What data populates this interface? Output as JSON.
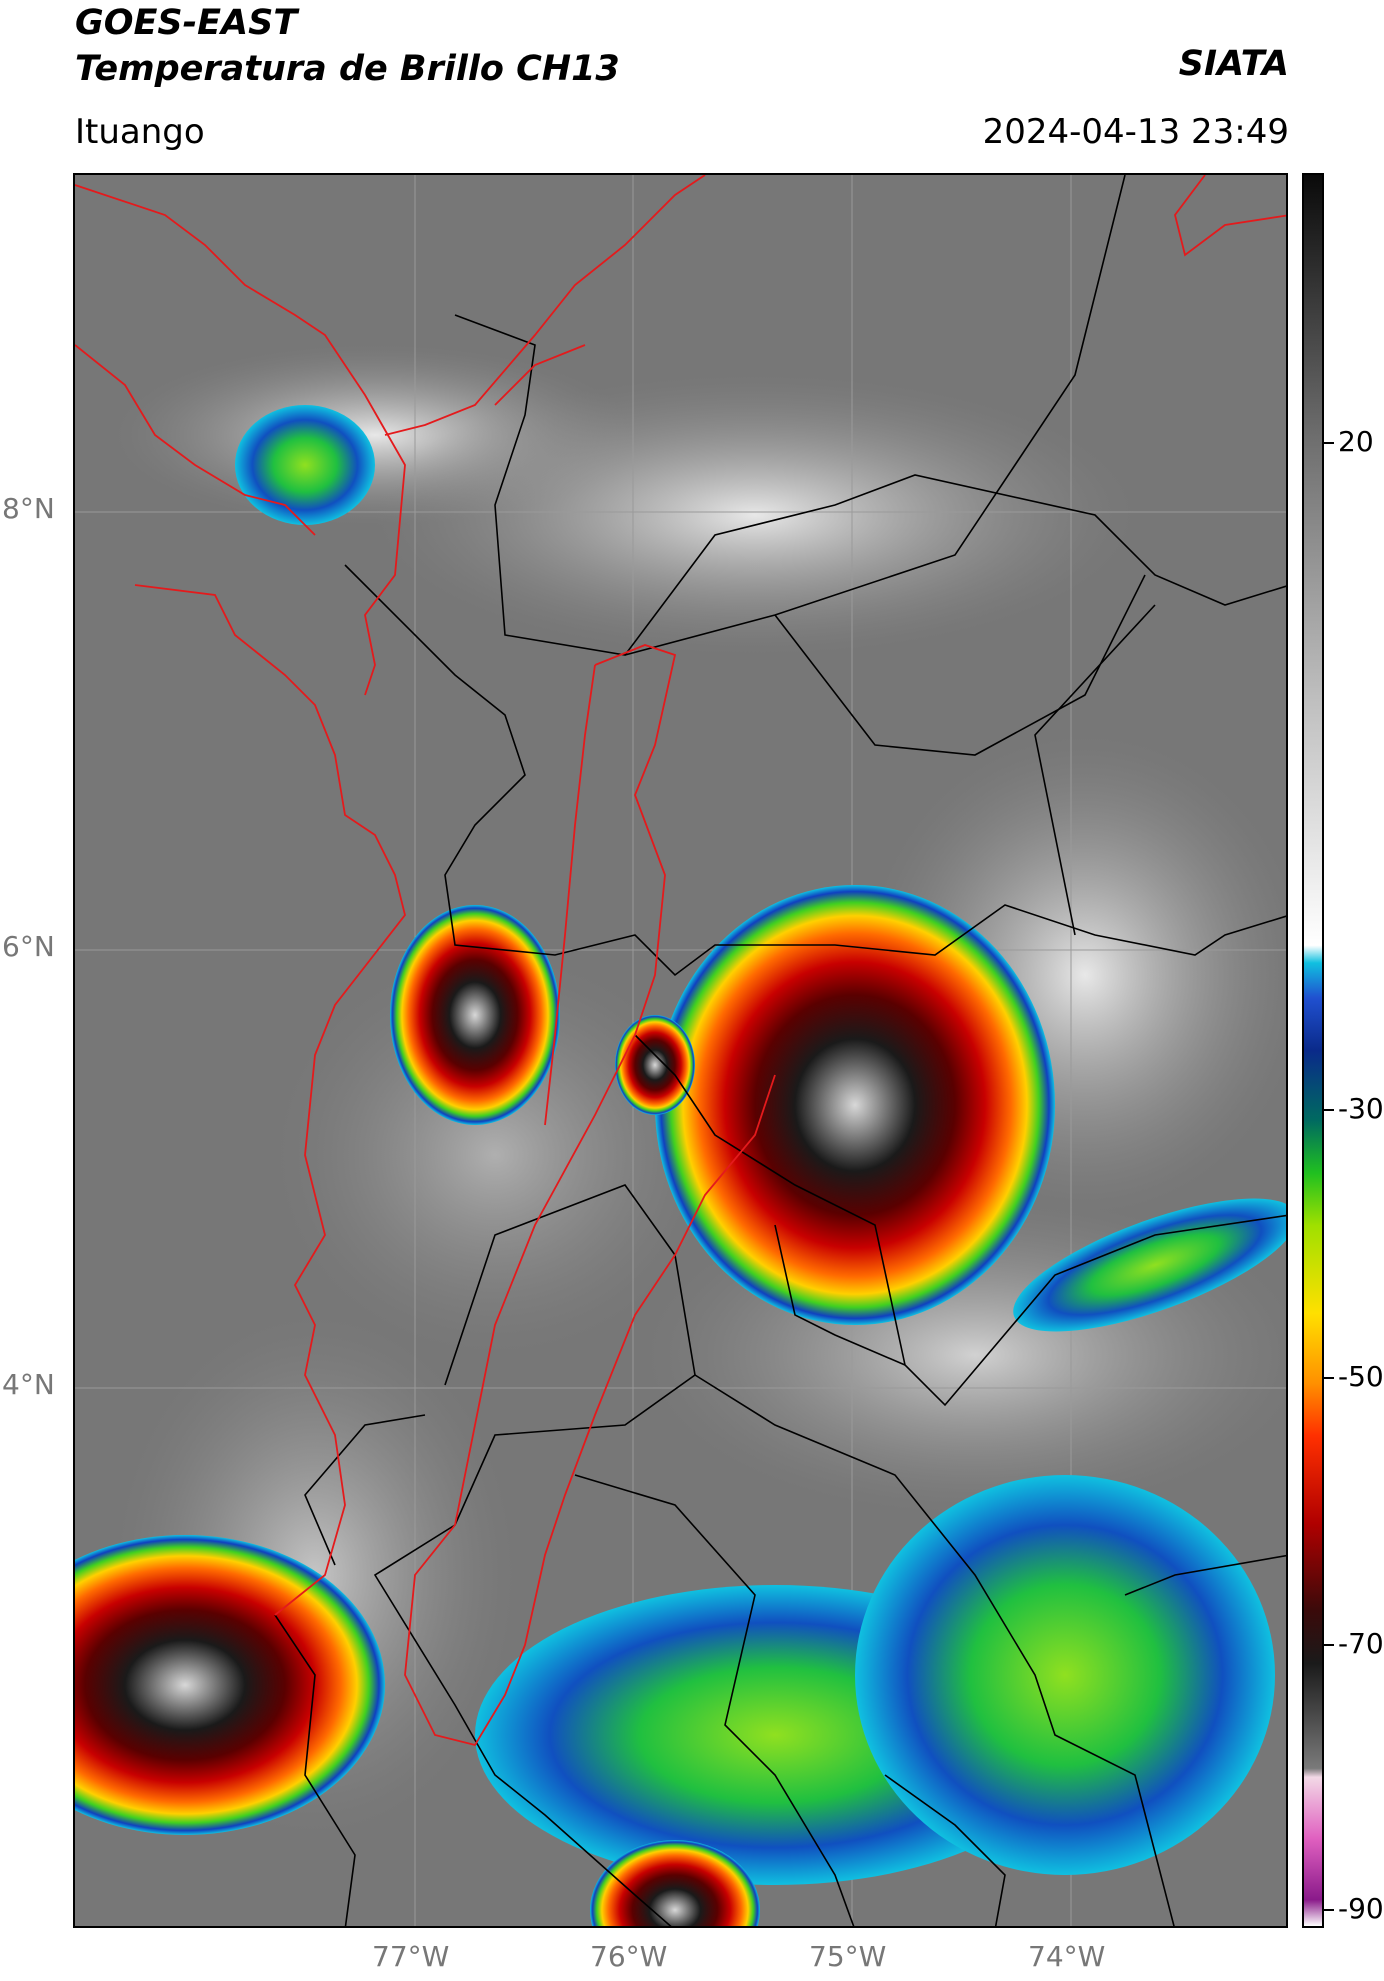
{
  "header": {
    "satellite": "GOES-EAST",
    "product": "Temperatura de Brillo CH13",
    "location": "Ituango",
    "agency": "SIATA",
    "datetime": "2024-04-13 23:49"
  },
  "map": {
    "lat_labels": [
      "8°N",
      "6°N",
      "4°N"
    ],
    "lon_labels": [
      "77°W",
      "76°W",
      "75°W",
      "74°W"
    ],
    "border_colors": {
      "national": "#000000",
      "regional": "#e41a1c"
    }
  },
  "colorbar": {
    "ticks": [
      "20",
      "-30",
      "-50",
      "-70",
      "-90"
    ],
    "stops": [
      "#ffffff",
      "#8a1a8a",
      "#e060c0",
      "#f2d8e6",
      "#7a7a7a",
      "#1a1a1a",
      "#3a0a0a",
      "#b00000",
      "#ff3000",
      "#ff9000",
      "#ffe000",
      "#a0e000",
      "#20c020",
      "#006a60",
      "#0a2a8a",
      "#2050d0",
      "#10c0e0",
      "#ffffff",
      "#bfbfbf",
      "#6e6e6e",
      "#0a0a0a"
    ]
  }
}
